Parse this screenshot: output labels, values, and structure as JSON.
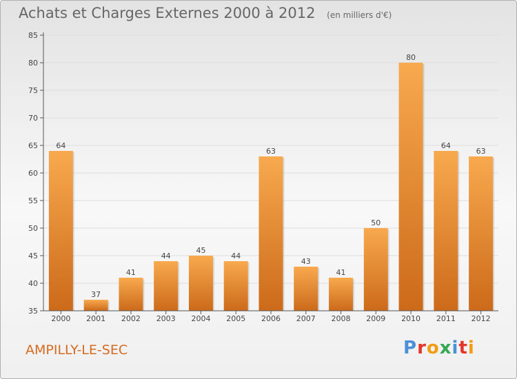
{
  "header": {
    "title": "Achats et Charges Externes 2000 à 2012",
    "subtitle": "(en milliers d'€)"
  },
  "footer": {
    "commune": "AMPILLY-LE-SEC",
    "brand": "Proxiti",
    "brand_colors": [
      "#4a90d9",
      "#e3352c",
      "#f39c12",
      "#35a853",
      "#4a90d9",
      "#e3352c",
      "#f39c12"
    ]
  },
  "colors": {
    "bar_light": "#f8a94e",
    "bar_dark": "#cc6a1a",
    "axis": "#555555",
    "grid": "#dddddd",
    "text": "#444444"
  },
  "chart_data": {
    "type": "bar",
    "title": "Achats et Charges Externes 2000 à 2012",
    "subtitle": "(en milliers d'€)",
    "categories": [
      "2000",
      "2001",
      "2002",
      "2003",
      "2004",
      "2005",
      "2006",
      "2007",
      "2008",
      "2009",
      "2010",
      "2011",
      "2012"
    ],
    "values": [
      64,
      37,
      41,
      44,
      45,
      44,
      63,
      43,
      41,
      50,
      80,
      64,
      63
    ],
    "ylim": [
      35,
      85
    ],
    "yticks": [
      35,
      40,
      45,
      50,
      55,
      60,
      65,
      70,
      75,
      80,
      85
    ],
    "grid": true,
    "data_labels": true
  }
}
